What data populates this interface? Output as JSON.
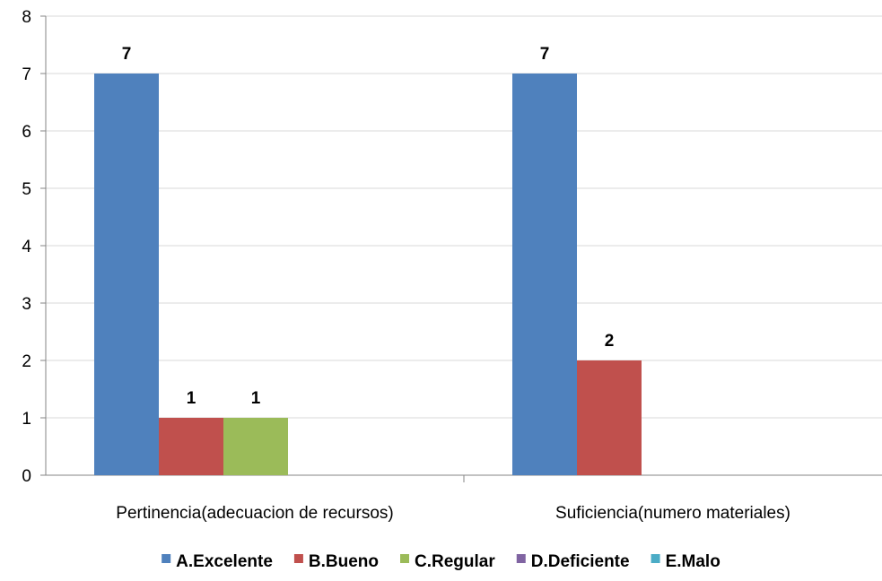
{
  "chart_data": {
    "type": "bar",
    "title": "",
    "xlabel": "",
    "ylabel": "",
    "ylim": [
      0,
      8
    ],
    "yticks": [
      0,
      1,
      2,
      3,
      4,
      5,
      6,
      7,
      8
    ],
    "grid": true,
    "legend_position": "bottom",
    "categories": [
      "Pertinencia(adecuacion de recursos)",
      "Suficiencia(numero materiales)"
    ],
    "series": [
      {
        "name": "A.Excelente",
        "color": "#4F81BD",
        "values": [
          7,
          7
        ]
      },
      {
        "name": "B.Bueno",
        "color": "#C0504D",
        "values": [
          1,
          2
        ]
      },
      {
        "name": "C.Regular",
        "color": "#9BBB59",
        "values": [
          1,
          0
        ]
      },
      {
        "name": "D.Deficiente",
        "color": "#8064A2",
        "values": [
          0,
          0
        ]
      },
      {
        "name": "E.Malo",
        "color": "#4BACC6",
        "values": [
          0,
          0
        ]
      }
    ]
  }
}
